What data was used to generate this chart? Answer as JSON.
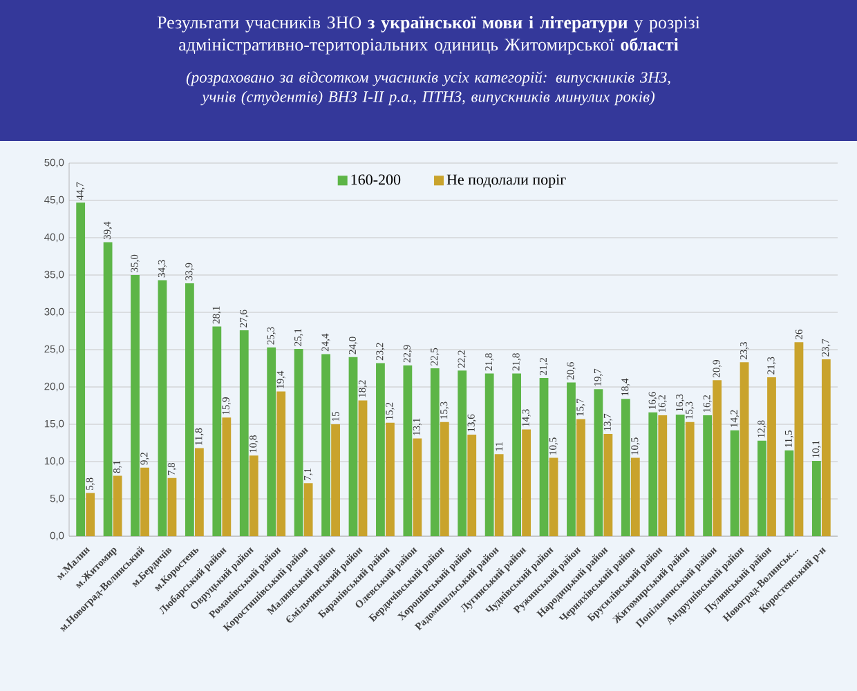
{
  "chart_data": {
    "type": "bar",
    "title": "Результати учасників ЗНО **з української мови і літератури** у розрізі адміністративно-територіальних одиниць Житомирської **області**",
    "subtitle": "(розраховано за відсотком учасників усіх категорій: випускників ЗНЗ, учнів (студентів) ВНЗ I-II р.а., ПТНЗ, випускників минулих років)",
    "categories": [
      "м.Малин",
      "м.Житомир",
      "м.Новоград-Волинський",
      "м.Бердичів",
      "м.Коростень",
      "Любарський район",
      "Овруцький район",
      "Романівський район",
      "Коростишівський район",
      "Малинський район",
      "Ємільчинський район",
      "Баранівський район",
      "Олевський район",
      "Бердичівський район",
      "Хорошівський район",
      "Радомишльський район",
      "Лугинський район",
      "Чуднівський район",
      "Ружинський район",
      "Народицький район",
      "Черняхівський район",
      "Брусилівський район",
      "Житомирський район",
      "Попільнянський район",
      "Андрушівський район",
      "Пулинський район",
      "Новоград-Волинськ...",
      "Коростенський р-н"
    ],
    "series": [
      {
        "name": "160-200",
        "color": "#5db547",
        "values": [
          44.7,
          39.4,
          35.0,
          34.3,
          33.9,
          28.1,
          27.6,
          25.3,
          25.1,
          24.4,
          24.0,
          23.2,
          22.9,
          22.5,
          22.2,
          21.8,
          21.8,
          21.2,
          20.6,
          19.7,
          18.4,
          16.6,
          16.3,
          16.2,
          14.2,
          12.8,
          11.5,
          10.1
        ],
        "value_labels": [
          "44,7",
          "39,4",
          "35,0",
          "34,3",
          "33,9",
          "28,1",
          "27,6",
          "25,3",
          "25,1",
          "24,4",
          "24,0",
          "23,2",
          "22,9",
          "22,5",
          "22,2",
          "21,8",
          "21,8",
          "21,2",
          "20,6",
          "19,7",
          "18,4",
          "16,6",
          "16,3",
          "16,2",
          "14,2",
          "12,8",
          "11,5",
          "10,1"
        ]
      },
      {
        "name": "Не подолали поріг",
        "color": "#c9a32c",
        "values": [
          5.8,
          8.1,
          9.2,
          7.8,
          11.8,
          15.9,
          10.8,
          19.4,
          7.1,
          15,
          18.2,
          15.2,
          13.1,
          15.3,
          13.6,
          11,
          14.3,
          10.5,
          15.7,
          13.7,
          10.5,
          16.2,
          15.3,
          20.9,
          23.3,
          21.3,
          26,
          23.7
        ],
        "value_labels": [
          "5,8",
          "8,1",
          "9,2",
          "7,8",
          "11,8",
          "15,9",
          "10,8",
          "19,4",
          "7,1",
          "15",
          "18,2",
          "15,2",
          "13,1",
          "15,3",
          "13,6",
          "11",
          "14,3",
          "10,5",
          "15,7",
          "13,7",
          "10,5",
          "16,2",
          "15,3",
          "20,9",
          "23,3",
          "21,3",
          "26",
          "23,7"
        ]
      }
    ],
    "ylim": [
      0,
      50
    ],
    "yticks": [
      {
        "value": 0,
        "label": "0,0"
      },
      {
        "value": 5,
        "label": "5,0"
      },
      {
        "value": 10,
        "label": "10,0"
      },
      {
        "value": 15,
        "label": "15,0"
      },
      {
        "value": 20,
        "label": "20,0"
      },
      {
        "value": 25,
        "label": "25,0"
      },
      {
        "value": 30,
        "label": "30,0"
      },
      {
        "value": 35,
        "label": "35,0"
      },
      {
        "value": 40,
        "label": "40,0"
      },
      {
        "value": 45,
        "label": "45,0"
      },
      {
        "value": 50,
        "label": "50,0"
      }
    ],
    "grid": "y",
    "legend": "top"
  }
}
